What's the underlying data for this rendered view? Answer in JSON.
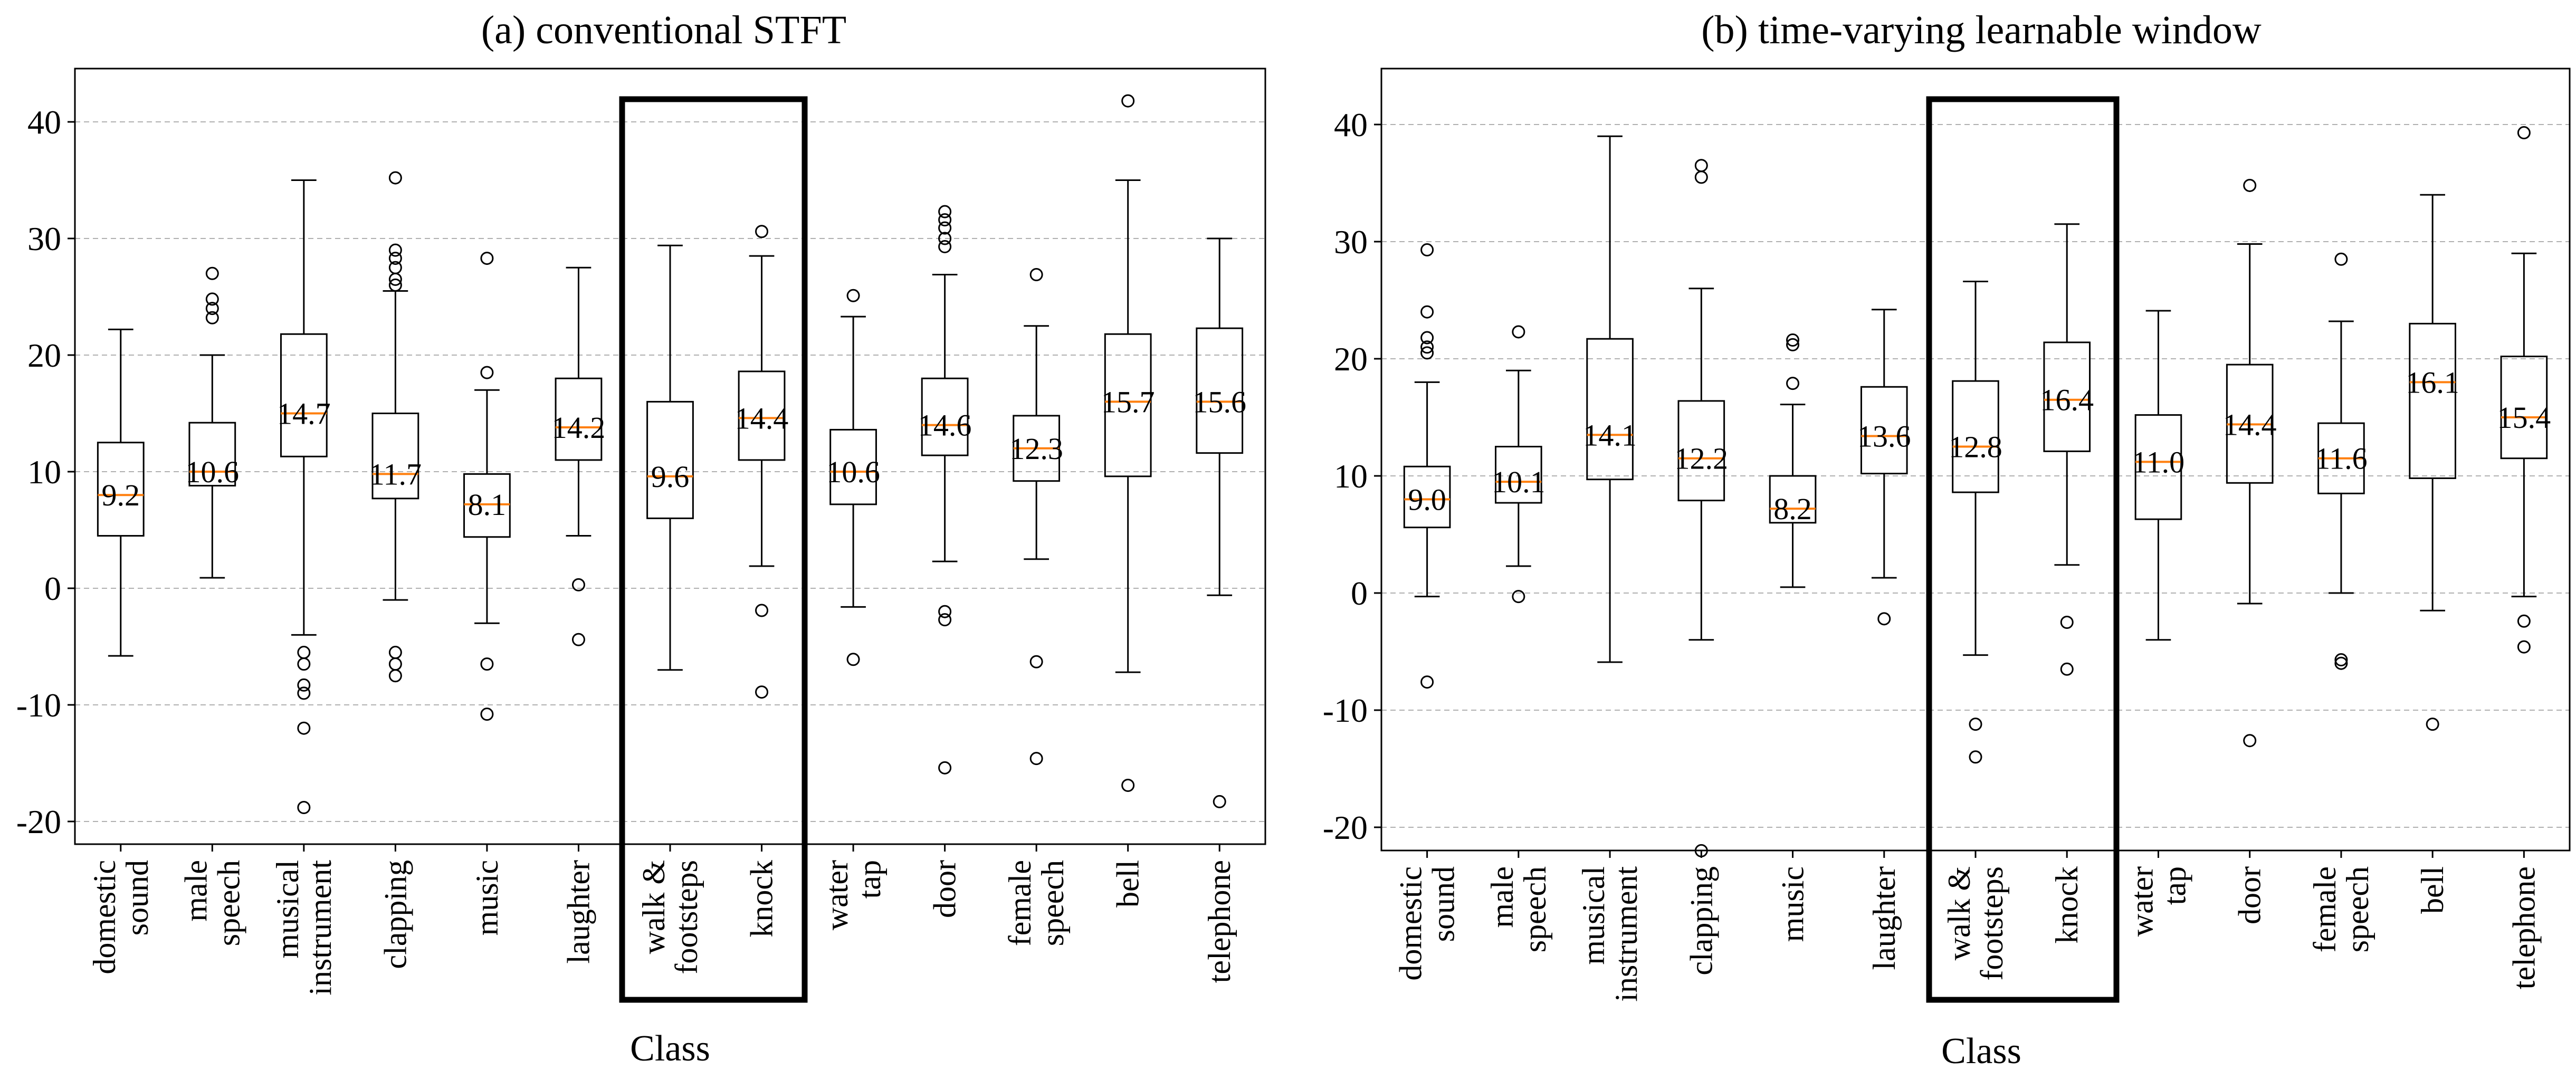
{
  "chart_data": [
    {
      "type": "box",
      "title": "(a) conventional STFT",
      "xlabel": "Class",
      "ylabel": "",
      "ylim": [
        -22,
        45
      ],
      "yticks": [
        -20,
        -10,
        0,
        10,
        20,
        30,
        40
      ],
      "grid": "horizontal dashed",
      "highlight_categories": [
        "walk &\nfootsteps",
        "knock"
      ],
      "categories": [
        "domestic\nsound",
        "male\nspeech",
        "musical\ninstrument",
        "clapping",
        "music",
        "laughter",
        "walk &\nfootsteps",
        "knock",
        "water\ntap",
        "door",
        "female\nspeech",
        "bell",
        "telephone"
      ],
      "median_labels": [
        "9.2",
        "10.6",
        "14.7",
        "11.7",
        "8.1",
        "14.2",
        "9.6",
        "14.4",
        "10.6",
        "14.6",
        "12.3",
        "15.7",
        "15.6"
      ],
      "boxes": [
        {
          "whisker_low": -5.8,
          "q1": 4.5,
          "median": 8.0,
          "q3": 12.5,
          "whisker_high": 22.2,
          "outliers": []
        },
        {
          "whisker_low": 0.9,
          "q1": 8.8,
          "median": 10.0,
          "q3": 14.2,
          "whisker_high": 20.0,
          "outliers": [
            23.2,
            24.0,
            24.8,
            27.0
          ]
        },
        {
          "whisker_low": -4.0,
          "q1": 11.3,
          "median": 15.0,
          "q3": 21.8,
          "whisker_high": 35.0,
          "outliers": [
            -5.5,
            -6.5,
            -8.3,
            -9.0,
            -12.0,
            -18.8
          ]
        },
        {
          "whisker_low": -1.0,
          "q1": 7.7,
          "median": 9.8,
          "q3": 15.0,
          "whisker_high": 25.5,
          "outliers": [
            26.0,
            26.5,
            27.5,
            28.3,
            29.0,
            35.2,
            -5.5,
            -6.5,
            -7.5
          ]
        },
        {
          "whisker_low": -3.0,
          "q1": 4.4,
          "median": 7.2,
          "q3": 9.8,
          "whisker_high": 17.0,
          "outliers": [
            18.5,
            28.3,
            -6.5,
            -10.8
          ]
        },
        {
          "whisker_low": 4.5,
          "q1": 11.0,
          "median": 13.8,
          "q3": 18.0,
          "whisker_high": 27.5,
          "outliers": [
            0.3,
            -4.4
          ]
        },
        {
          "whisker_low": -7.0,
          "q1": 6.0,
          "median": 9.6,
          "q3": 16.0,
          "whisker_high": 29.4,
          "outliers": []
        },
        {
          "whisker_low": 1.9,
          "q1": 11.0,
          "median": 14.6,
          "q3": 18.6,
          "whisker_high": 28.5,
          "outliers": [
            30.6,
            -1.9,
            -8.9
          ]
        },
        {
          "whisker_low": -1.6,
          "q1": 7.2,
          "median": 10.0,
          "q3": 13.6,
          "whisker_high": 23.3,
          "outliers": [
            25.1,
            -6.1
          ]
        },
        {
          "whisker_low": 2.3,
          "q1": 11.4,
          "median": 14.0,
          "q3": 18.0,
          "whisker_high": 26.9,
          "outliers": [
            29.3,
            30.0,
            30.9,
            31.6,
            32.3,
            -2.0,
            -2.7,
            -15.4
          ]
        },
        {
          "whisker_low": 2.5,
          "q1": 9.2,
          "median": 12.0,
          "q3": 14.8,
          "whisker_high": 22.5,
          "outliers": [
            26.9,
            -6.3,
            -14.6
          ]
        },
        {
          "whisker_low": -7.2,
          "q1": 9.6,
          "median": 16.0,
          "q3": 21.8,
          "whisker_high": 35.0,
          "outliers": [
            41.8,
            -16.9
          ]
        },
        {
          "whisker_low": -0.6,
          "q1": 11.6,
          "median": 16.0,
          "q3": 22.3,
          "whisker_high": 30.0,
          "outliers": [
            -18.3
          ]
        }
      ]
    },
    {
      "type": "box",
      "title": "(b) time-varying learnable window",
      "xlabel": "Class",
      "ylabel": "",
      "ylim": [
        -22,
        45
      ],
      "yticks": [
        -20,
        -10,
        0,
        10,
        20,
        30,
        40
      ],
      "grid": "horizontal dashed",
      "highlight_categories": [
        "walk &\nfootsteps",
        "knock"
      ],
      "categories": [
        "domestic\nsound",
        "male\nspeech",
        "musical\ninstrument",
        "clapping",
        "music",
        "laughter",
        "walk &\nfootsteps",
        "knock",
        "water\ntap",
        "door",
        "female\nspeech",
        "bell",
        "telephone"
      ],
      "median_labels": [
        "9.0",
        "10.1",
        "14.1",
        "12.2",
        "8.2",
        "13.6",
        "12.8",
        "16.4",
        "11.0",
        "14.4",
        "11.6",
        "16.1",
        "15.4"
      ],
      "boxes": [
        {
          "whisker_low": -0.3,
          "q1": 5.6,
          "median": 8.0,
          "q3": 10.8,
          "whisker_high": 18.0,
          "outliers": [
            20.5,
            21.0,
            21.8,
            24.0,
            29.3,
            -7.6
          ]
        },
        {
          "whisker_low": 2.3,
          "q1": 7.7,
          "median": 9.5,
          "q3": 12.5,
          "whisker_high": 19.0,
          "outliers": [
            22.3,
            -0.3
          ]
        },
        {
          "whisker_low": -5.9,
          "q1": 9.7,
          "median": 13.5,
          "q3": 21.7,
          "whisker_high": 39.0,
          "outliers": []
        },
        {
          "whisker_low": -4.0,
          "q1": 7.9,
          "median": 11.5,
          "q3": 16.4,
          "whisker_high": 26.0,
          "outliers": [
            35.5,
            36.5,
            -22.0
          ]
        },
        {
          "whisker_low": 0.5,
          "q1": 6.0,
          "median": 7.2,
          "q3": 10.0,
          "whisker_high": 16.1,
          "outliers": [
            17.9,
            21.2,
            21.6
          ]
        },
        {
          "whisker_low": 1.3,
          "q1": 10.2,
          "median": 13.4,
          "q3": 17.6,
          "whisker_high": 24.2,
          "outliers": [
            -2.2
          ]
        },
        {
          "whisker_low": -5.3,
          "q1": 8.6,
          "median": 12.5,
          "q3": 18.1,
          "whisker_high": 26.6,
          "outliers": [
            -11.2,
            -14.0
          ]
        },
        {
          "whisker_low": 2.4,
          "q1": 12.1,
          "median": 16.5,
          "q3": 21.4,
          "whisker_high": 31.5,
          "outliers": [
            -2.5,
            -6.5
          ]
        },
        {
          "whisker_low": -4.0,
          "q1": 6.3,
          "median": 11.2,
          "q3": 15.2,
          "whisker_high": 24.1,
          "outliers": []
        },
        {
          "whisker_low": -0.9,
          "q1": 9.4,
          "median": 14.4,
          "q3": 19.5,
          "whisker_high": 29.8,
          "outliers": [
            34.8,
            -12.6
          ]
        },
        {
          "whisker_low": 0.0,
          "q1": 8.5,
          "median": 11.5,
          "q3": 14.5,
          "whisker_high": 23.2,
          "outliers": [
            28.5,
            -5.7,
            -6.0
          ]
        },
        {
          "whisker_low": -1.5,
          "q1": 9.8,
          "median": 18.0,
          "q3": 23.0,
          "whisker_high": 34.0,
          "outliers": [
            -11.2
          ]
        },
        {
          "whisker_low": -0.3,
          "q1": 11.5,
          "median": 15.0,
          "q3": 20.2,
          "whisker_high": 29.0,
          "outliers": [
            39.3,
            -2.4,
            -4.6
          ]
        }
      ]
    }
  ],
  "colors": {
    "median": "#ff7f0e",
    "box": "#000000",
    "grid": "#b0b0b0",
    "highlight_frame": "#000000"
  }
}
